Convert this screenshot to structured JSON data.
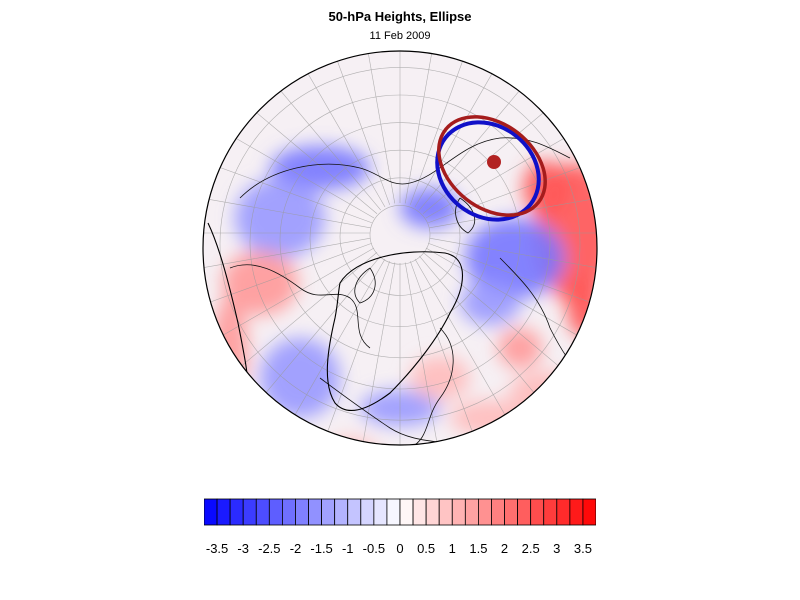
{
  "title": "50-hPa Heights, Ellipse",
  "subtitle": "11 Feb 2009",
  "chart_data": {
    "type": "heatmap",
    "projection": "orthographic polar (north pole)",
    "title": "50-hPa Heights, Ellipse",
    "subtitle": "11 Feb 2009",
    "colorbar": {
      "levels": [
        -3.75,
        -3.5,
        -3.25,
        -3,
        -2.75,
        -2.5,
        -2.25,
        -2,
        -1.75,
        -1.5,
        -1.25,
        -1,
        -0.75,
        -0.5,
        -0.25,
        0,
        0.25,
        0.5,
        0.75,
        1,
        1.25,
        1.5,
        1.75,
        2,
        2.25,
        2.5,
        2.75,
        3,
        3.25,
        3.5,
        3.75
      ],
      "tick_labels": [
        "-3.5",
        "-3",
        "-2.5",
        "-2",
        "-1.5",
        "-1",
        "-0.5",
        "0",
        "0.5",
        "1",
        "1.5",
        "2",
        "2.5",
        "3",
        "3.5"
      ],
      "tick_values": [
        -3.5,
        -3,
        -2.5,
        -2,
        -1.5,
        -1,
        -0.5,
        0,
        0.5,
        1,
        1.5,
        2,
        2.5,
        3,
        3.5
      ],
      "min_color": "#0000ff",
      "mid_color": "#ffffff",
      "max_color": "#ff0000"
    },
    "field_anomalies": [
      {
        "value": 2.5,
        "region": "east"
      },
      {
        "value": -2.0,
        "region": "northeast"
      },
      {
        "value": -1.5,
        "region": "west"
      },
      {
        "value": 1.5,
        "region": "southwest"
      },
      {
        "value": 1.0,
        "region": "southeast"
      }
    ],
    "ellipses": [
      {
        "name": "blue",
        "color": "#1010c8"
      },
      {
        "name": "red",
        "color": "#a51c1c"
      }
    ],
    "ellipse_center_marker_color": "#b22222"
  }
}
